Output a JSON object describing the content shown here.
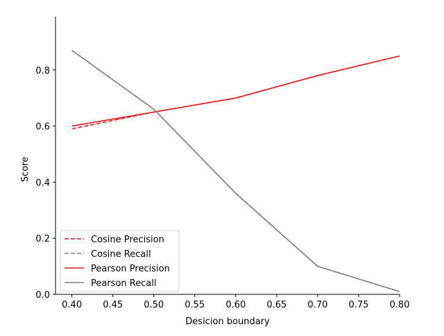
{
  "chart_data": {
    "type": "line",
    "title": "",
    "xlabel": "Desicion boundary",
    "ylabel": "Score",
    "xlim": [
      0.38,
      0.8
    ],
    "ylim": [
      -0.0,
      0.99
    ],
    "x": [
      0.4,
      0.5,
      0.6,
      0.7,
      0.8
    ],
    "x_ticks": [
      "0.40",
      "0.45",
      "0.50",
      "0.55",
      "0.60",
      "0.65",
      "0.70",
      "0.75",
      "0.80"
    ],
    "y_ticks": [
      "0.0",
      "0.2",
      "0.4",
      "0.6",
      "0.8"
    ],
    "grid": false,
    "legend_position": "lower-left",
    "series": [
      {
        "name": "Cosine Precision",
        "values": [
          0.59,
          0.65,
          0.7,
          0.78,
          0.85
        ],
        "color": "#e41a1c",
        "style": "dashed"
      },
      {
        "name": "Cosine Recall",
        "values": [
          0.87,
          0.66,
          0.36,
          0.1,
          0.01
        ],
        "color": "#808080",
        "style": "dashed"
      },
      {
        "name": "Pearson Precision",
        "values": [
          0.6,
          0.65,
          0.7,
          0.78,
          0.85
        ],
        "color": "#e41a1c",
        "style": "solid"
      },
      {
        "name": "Pearson Recall",
        "values": [
          0.87,
          0.66,
          0.36,
          0.1,
          0.01
        ],
        "color": "#808080",
        "style": "solid"
      }
    ]
  }
}
